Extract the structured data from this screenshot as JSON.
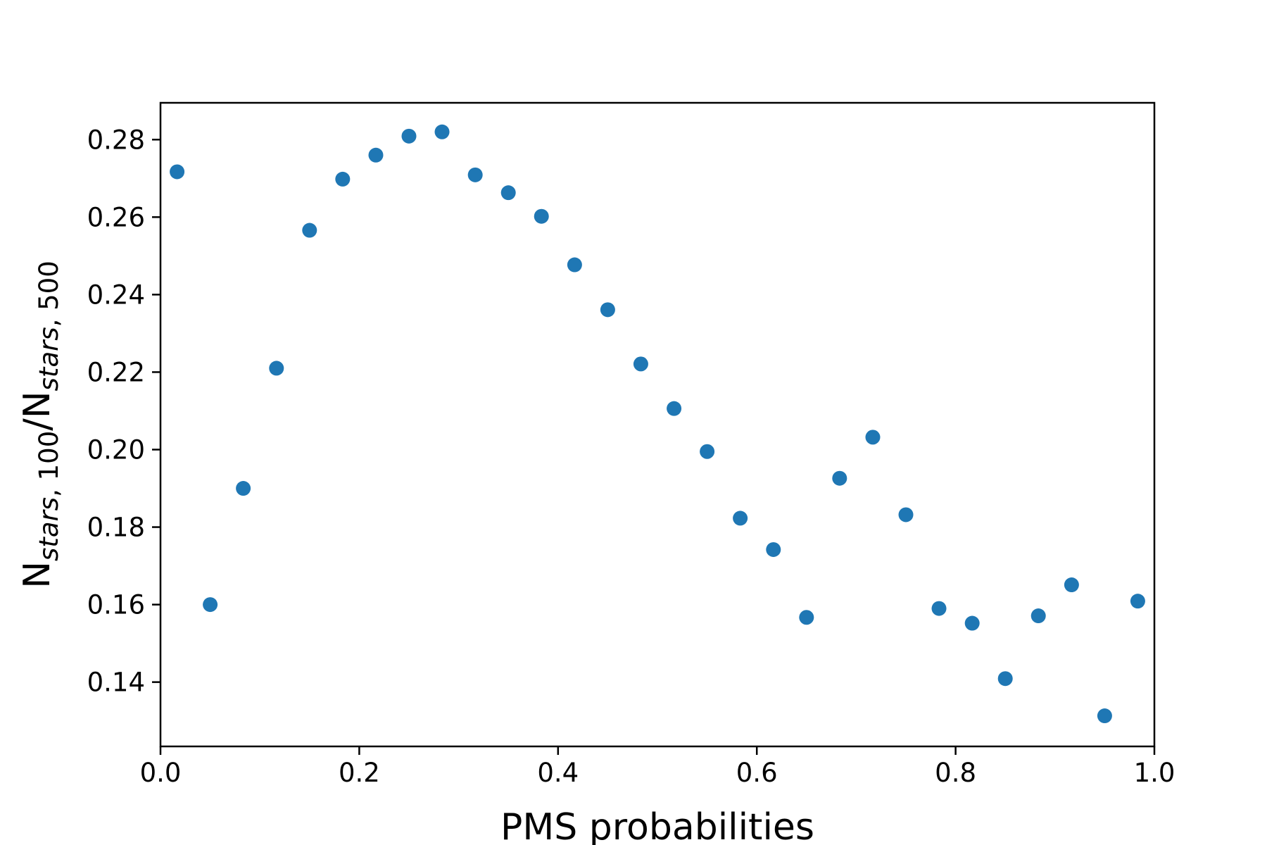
{
  "chart_data": {
    "type": "scatter",
    "title": "",
    "xlabel": "PMS probabilities",
    "ylabel": {
      "base": "N",
      "sub1": "stars",
      "sub1_tail": ", 100",
      "slash": "/N",
      "sub2": "stars",
      "sub2_tail": ", 500"
    },
    "xlim": [
      0.0,
      1.0
    ],
    "ylim": [
      0.1234,
      0.2895
    ],
    "xticks": [
      0.0,
      0.2,
      0.4,
      0.6,
      0.8,
      1.0
    ],
    "xtick_labels": [
      "0.0",
      "0.2",
      "0.4",
      "0.6",
      "0.8",
      "1.0"
    ],
    "yticks": [
      0.14,
      0.16,
      0.18,
      0.2,
      0.22,
      0.24,
      0.26,
      0.28
    ],
    "ytick_labels": [
      "0.14",
      "0.16",
      "0.18",
      "0.20",
      "0.22",
      "0.24",
      "0.26",
      "0.28"
    ],
    "grid": false,
    "marker_color": "#1f77b4",
    "series": [
      {
        "x": [
          0.0167,
          0.05,
          0.0833,
          0.1167,
          0.15,
          0.1833,
          0.2167,
          0.25,
          0.2833,
          0.3167,
          0.35,
          0.3833,
          0.4167,
          0.45,
          0.4833,
          0.5167,
          0.55,
          0.5833,
          0.6167,
          0.65,
          0.6833,
          0.7167,
          0.75,
          0.7833,
          0.8167,
          0.85,
          0.8833,
          0.9167,
          0.95,
          0.9833
        ],
        "y": [
          0.2717,
          0.16,
          0.19,
          0.221,
          0.2566,
          0.2698,
          0.276,
          0.2809,
          0.282,
          0.2709,
          0.2663,
          0.2602,
          0.2477,
          0.2361,
          0.2221,
          0.2106,
          0.1995,
          0.1823,
          0.1742,
          0.1567,
          0.1926,
          0.2032,
          0.1832,
          0.159,
          0.1552,
          0.1409,
          0.1571,
          0.1651,
          0.1313,
          0.1609
        ]
      }
    ]
  }
}
